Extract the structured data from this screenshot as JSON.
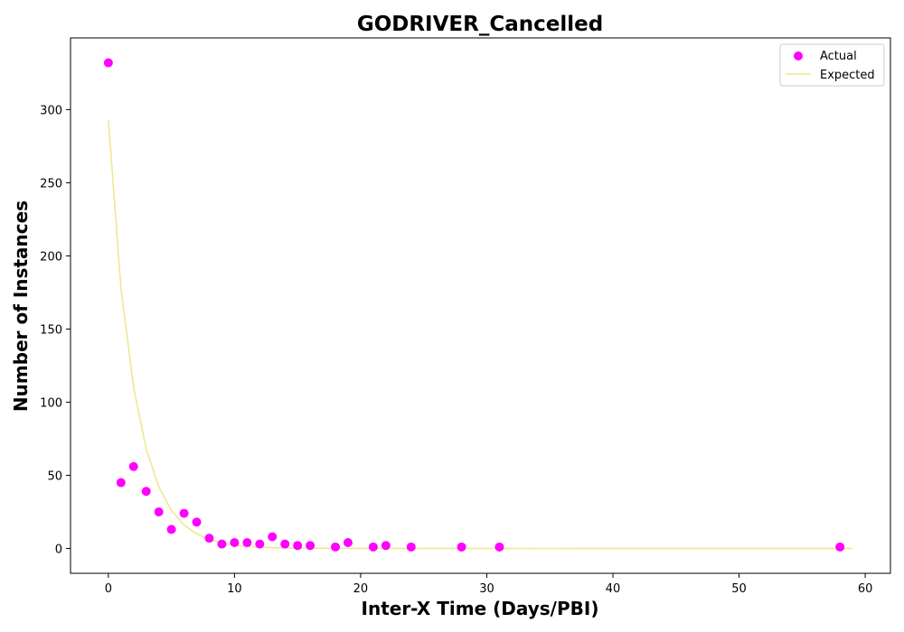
{
  "chart_data": {
    "type": "scatter",
    "title": "GODRIVER_Cancelled",
    "xlabel": "Inter-X Time (Days/PBI)",
    "ylabel": "Number of Instances",
    "xlim": [
      -3,
      62
    ],
    "ylim": [
      -17,
      349
    ],
    "xticks": [
      0,
      10,
      20,
      30,
      40,
      50,
      60
    ],
    "yticks": [
      0,
      50,
      100,
      150,
      200,
      250,
      300
    ],
    "grid": false,
    "legend_position": "top-right",
    "series": [
      {
        "name": "Actual",
        "kind": "scatter",
        "color": "#ff00ff",
        "points": [
          [
            0,
            332
          ],
          [
            1,
            45
          ],
          [
            2,
            56
          ],
          [
            3,
            39
          ],
          [
            4,
            25
          ],
          [
            5,
            13
          ],
          [
            6,
            24
          ],
          [
            7,
            18
          ],
          [
            8,
            7
          ],
          [
            9,
            3
          ],
          [
            10,
            4
          ],
          [
            11,
            4
          ],
          [
            12,
            3
          ],
          [
            13,
            8
          ],
          [
            14,
            3
          ],
          [
            15,
            2
          ],
          [
            16,
            2
          ],
          [
            18,
            1
          ],
          [
            19,
            4
          ],
          [
            21,
            1
          ],
          [
            22,
            2
          ],
          [
            24,
            1
          ],
          [
            28,
            1
          ],
          [
            31,
            1
          ],
          [
            58,
            1
          ]
        ]
      },
      {
        "name": "Expected",
        "kind": "line",
        "color": "#f0e68c",
        "x": [
          0,
          1,
          2,
          3,
          4,
          5,
          6,
          7,
          8,
          9,
          10,
          11,
          12,
          13,
          14,
          15,
          16,
          17,
          18,
          19,
          20,
          59
        ],
        "y": [
          293,
          178,
          110,
          68,
          42,
          26,
          16,
          10,
          6,
          3.7,
          2.3,
          1.4,
          0.9,
          0.5,
          0.3,
          0.2,
          0.1,
          0.07,
          0.04,
          0.03,
          0.02,
          0
        ]
      }
    ]
  }
}
